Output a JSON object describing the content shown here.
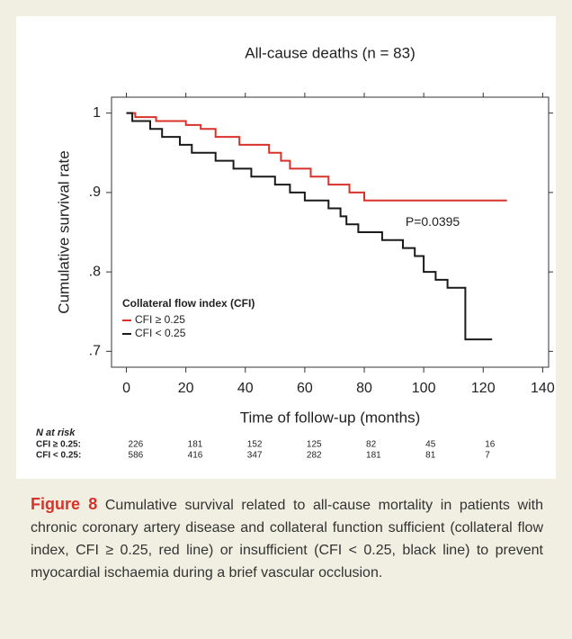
{
  "chart_data": {
    "type": "step",
    "title": "All-cause deaths (n = 83)",
    "x_label": "Time of follow-up (months)",
    "y_label": "Cumulative survival rate",
    "xlim": [
      -5,
      142
    ],
    "xticks": [
      0,
      20,
      40,
      60,
      80,
      100,
      120,
      140
    ],
    "ylim": [
      0.68,
      1.02
    ],
    "yticks": [
      {
        "value": 0.7,
        "label": ".7"
      },
      {
        "value": 0.8,
        "label": ".8"
      },
      {
        "value": 0.9,
        "label": ".9"
      },
      1
    ],
    "legend_title": "Collateral flow index (CFI)",
    "legend_position": "lower-left",
    "annotation": "P=0.0395",
    "series": [
      {
        "name": "CFI ≥ 0.25",
        "color": "#d8322a",
        "x": [
          0,
          3,
          3,
          10,
          10,
          20,
          20,
          25,
          25,
          30,
          30,
          38,
          38,
          48,
          48,
          52,
          52,
          55,
          55,
          62,
          62,
          68,
          68,
          75,
          75,
          80,
          80,
          128
        ],
        "values": [
          1,
          1,
          0.995,
          0.995,
          0.99,
          0.99,
          0.985,
          0.985,
          0.98,
          0.98,
          0.97,
          0.97,
          0.96,
          0.96,
          0.95,
          0.95,
          0.94,
          0.94,
          0.93,
          0.93,
          0.92,
          0.92,
          0.91,
          0.91,
          0.9,
          0.9,
          0.89,
          0.89
        ]
      },
      {
        "name": "CFI < 0.25",
        "color": "#1a1a1a",
        "x": [
          0,
          2,
          2,
          8,
          8,
          12,
          12,
          18,
          18,
          22,
          22,
          30,
          30,
          36,
          36,
          42,
          42,
          50,
          50,
          55,
          55,
          60,
          60,
          68,
          68,
          72,
          72,
          74,
          74,
          78,
          78,
          86,
          86,
          93,
          93,
          97,
          97,
          100,
          100,
          104,
          104,
          108,
          108,
          114,
          114,
          123
        ],
        "values": [
          1,
          1,
          0.99,
          0.99,
          0.98,
          0.98,
          0.97,
          0.97,
          0.96,
          0.96,
          0.95,
          0.95,
          0.94,
          0.94,
          0.93,
          0.93,
          0.92,
          0.92,
          0.91,
          0.91,
          0.9,
          0.9,
          0.89,
          0.89,
          0.88,
          0.88,
          0.87,
          0.87,
          0.86,
          0.86,
          0.85,
          0.85,
          0.84,
          0.84,
          0.83,
          0.83,
          0.82,
          0.82,
          0.8,
          0.8,
          0.79,
          0.79,
          0.78,
          0.78,
          0.715,
          0.715
        ]
      }
    ],
    "risk_table": {
      "title": "N at risk",
      "rows": [
        {
          "label": "CFI ≥ 0.25:",
          "values": [
            226,
            181,
            152,
            125,
            82,
            45,
            16
          ]
        },
        {
          "label": "CFI < 0.25:",
          "values": [
            586,
            416,
            347,
            282,
            181,
            81,
            7
          ]
        }
      ]
    }
  },
  "caption": {
    "label": "Figure 8",
    "text": "Cumulative survival related to all-cause mortality in patients with chronic coronary artery disease and collateral function sufficient (collateral flow index, CFI ≥ 0.25, red line) or insufficient (CFI < 0.25, black line) to prevent myocardial ischaemia during a brief vascular occlusion."
  }
}
